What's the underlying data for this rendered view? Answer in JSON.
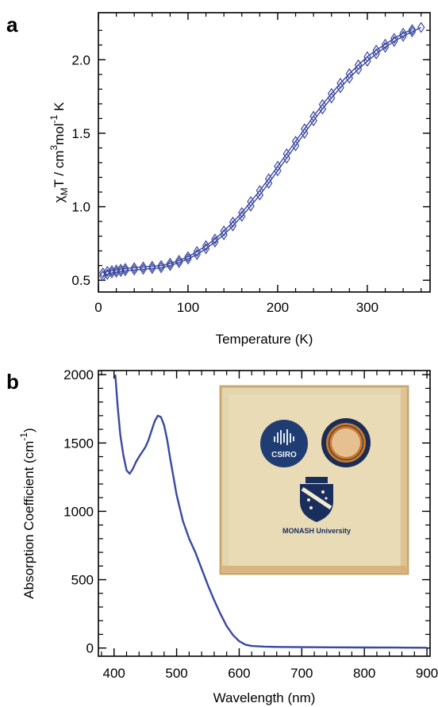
{
  "panels": {
    "a": {
      "label": "a"
    },
    "b": {
      "label": "b"
    }
  },
  "colors": {
    "series": "#3a48a0",
    "axis": "#000000",
    "photo_bg": "#e3d5ad",
    "csiro": "#1f3d73",
    "monash": "#1a2e5e",
    "seal_ring": "#c07020"
  },
  "chart_data": [
    {
      "type": "scatter",
      "panel": "a",
      "xlabel": "Temperature (K)",
      "ylabel": "χMT / cm3 mol-1 K",
      "ylabel_parts": {
        "chi": "χ",
        "sub_M": "M",
        "rest1": "T / cm",
        "sup_3": "3",
        "rest2": "mol",
        "sup_m1": "-1",
        "rest3": " K"
      },
      "xlim": [
        0,
        370
      ],
      "ylim": [
        0.42,
        2.32
      ],
      "x_ticks": [
        0,
        100,
        200,
        300
      ],
      "y_ticks": [
        0.5,
        1.0,
        1.5,
        2.0
      ],
      "x_tick_labels": [
        "0",
        "100",
        "200",
        "300"
      ],
      "y_tick_labels": [
        "0.5",
        "1.0",
        "1.5",
        "2.0"
      ],
      "marker": "open-diamond",
      "series": [
        {
          "x": [
            5,
            10,
            15,
            20,
            25,
            30,
            40,
            50,
            60,
            70,
            80,
            90,
            100,
            110,
            120,
            130,
            140,
            150,
            160,
            170,
            180,
            190,
            200,
            210,
            220,
            230,
            240,
            250,
            260,
            270,
            280,
            290,
            300,
            310,
            320,
            330,
            340,
            350,
            360
          ],
          "y": [
            0.53,
            0.54,
            0.55,
            0.555,
            0.56,
            0.565,
            0.57,
            0.575,
            0.58,
            0.585,
            0.6,
            0.62,
            0.645,
            0.675,
            0.715,
            0.76,
            0.81,
            0.87,
            0.935,
            1.005,
            1.08,
            1.16,
            1.245,
            1.33,
            1.415,
            1.5,
            1.585,
            1.665,
            1.74,
            1.81,
            1.875,
            1.935,
            1.99,
            2.04,
            2.085,
            2.125,
            2.16,
            2.19,
            2.22
          ]
        },
        {
          "x": [
            5,
            10,
            15,
            20,
            25,
            30,
            40,
            50,
            60,
            70,
            80,
            90,
            100,
            110,
            120,
            130,
            140,
            150,
            160,
            170,
            180,
            190,
            200,
            210,
            220,
            230,
            240,
            250,
            260,
            270,
            280,
            290,
            300,
            310,
            320,
            330,
            340,
            350
          ],
          "y": [
            0.55,
            0.56,
            0.565,
            0.57,
            0.575,
            0.58,
            0.585,
            0.59,
            0.595,
            0.6,
            0.615,
            0.635,
            0.66,
            0.695,
            0.735,
            0.78,
            0.835,
            0.895,
            0.96,
            1.035,
            1.11,
            1.19,
            1.275,
            1.36,
            1.445,
            1.53,
            1.615,
            1.695,
            1.77,
            1.84,
            1.905,
            1.965,
            2.02,
            2.065,
            2.105,
            2.145,
            2.18,
            2.205
          ]
        }
      ]
    },
    {
      "type": "line",
      "panel": "b",
      "xlabel": "Wavelength (nm)",
      "ylabel": "Absorption Coefficient (cm-1)",
      "ylabel_parts": {
        "main": "Absorption Coefficient (cm",
        "sup": "-1",
        "close": ")"
      },
      "xlim": [
        375,
        905
      ],
      "ylim": [
        -60,
        2030
      ],
      "x_ticks": [
        400,
        500,
        600,
        700,
        800,
        900
      ],
      "y_ticks": [
        0,
        500,
        1000,
        1500,
        2000
      ],
      "x_tick_labels": [
        "400",
        "500",
        "600",
        "700",
        "800",
        "900"
      ],
      "y_tick_labels": [
        "0",
        "500",
        "1000",
        "1500",
        "2000"
      ],
      "series": [
        {
          "x": [
            402,
            406,
            410,
            415,
            420,
            425,
            430,
            435,
            440,
            450,
            455,
            460,
            465,
            470,
            475,
            480,
            485,
            490,
            500,
            510,
            520,
            530,
            540,
            550,
            560,
            570,
            580,
            590,
            600,
            610,
            620,
            640,
            660,
            700,
            750,
            800,
            850,
            900
          ],
          "y": [
            2000,
            1760,
            1560,
            1410,
            1300,
            1275,
            1310,
            1360,
            1400,
            1470,
            1520,
            1590,
            1660,
            1700,
            1690,
            1630,
            1520,
            1380,
            1120,
            930,
            800,
            700,
            580,
            460,
            350,
            250,
            160,
            95,
            50,
            25,
            15,
            10,
            8,
            6,
            5,
            4,
            3,
            2
          ]
        }
      ]
    }
  ],
  "inset_photo": {
    "csiro_text": "CSIRO",
    "monash_text": "MONASH University"
  }
}
